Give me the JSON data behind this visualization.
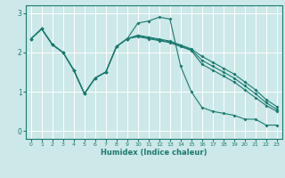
{
  "xlabel": "Humidex (Indice chaleur)",
  "background_color": "#cce8e8",
  "grid_color": "#ffffff",
  "line_color": "#1a7a6e",
  "xlim": [
    -0.5,
    23.5
  ],
  "ylim": [
    -0.2,
    3.2
  ],
  "xticks": [
    0,
    1,
    2,
    3,
    4,
    5,
    6,
    7,
    8,
    9,
    10,
    11,
    12,
    13,
    14,
    15,
    16,
    17,
    18,
    19,
    20,
    21,
    22,
    23
  ],
  "yticks": [
    0,
    1,
    2,
    3
  ],
  "line1_x": [
    0,
    1,
    2,
    3,
    4,
    5,
    6,
    7,
    8,
    9,
    10,
    11,
    12,
    13,
    14,
    15,
    16,
    17,
    18,
    19,
    20,
    21,
    22,
    23
  ],
  "line1_y": [
    2.35,
    2.6,
    2.2,
    2.0,
    1.55,
    0.95,
    1.35,
    1.5,
    2.15,
    2.35,
    2.75,
    2.8,
    2.9,
    2.85,
    1.65,
    1.0,
    0.6,
    0.5,
    0.45,
    0.4,
    0.3,
    0.3,
    0.15,
    0.15
  ],
  "line2_x": [
    0,
    1,
    2,
    3,
    4,
    5,
    6,
    7,
    8,
    9,
    10,
    11,
    12,
    13,
    14,
    15,
    16,
    17,
    18,
    19,
    20,
    21,
    22,
    23
  ],
  "line2_y": [
    2.35,
    2.6,
    2.2,
    2.0,
    1.55,
    0.95,
    1.35,
    1.5,
    2.15,
    2.35,
    2.4,
    2.35,
    2.3,
    2.25,
    2.15,
    2.05,
    1.7,
    1.55,
    1.4,
    1.25,
    1.05,
    0.85,
    0.65,
    0.5
  ],
  "line3_x": [
    0,
    1,
    2,
    3,
    4,
    5,
    6,
    7,
    8,
    9,
    10,
    11,
    12,
    13,
    14,
    15,
    16,
    17,
    18,
    19,
    20,
    21,
    22,
    23
  ],
  "line3_y": [
    2.35,
    2.6,
    2.2,
    2.0,
    1.55,
    0.95,
    1.35,
    1.5,
    2.15,
    2.35,
    2.42,
    2.37,
    2.32,
    2.27,
    2.17,
    2.07,
    1.8,
    1.65,
    1.5,
    1.35,
    1.15,
    0.95,
    0.72,
    0.55
  ],
  "line4_x": [
    0,
    1,
    2,
    3,
    4,
    5,
    6,
    7,
    8,
    9,
    10,
    11,
    12,
    13,
    14,
    15,
    16,
    17,
    18,
    19,
    20,
    21,
    22,
    23
  ],
  "line4_y": [
    2.35,
    2.6,
    2.2,
    2.0,
    1.55,
    0.95,
    1.35,
    1.5,
    2.15,
    2.35,
    2.44,
    2.39,
    2.34,
    2.29,
    2.19,
    2.09,
    1.9,
    1.75,
    1.6,
    1.45,
    1.25,
    1.05,
    0.8,
    0.62
  ]
}
